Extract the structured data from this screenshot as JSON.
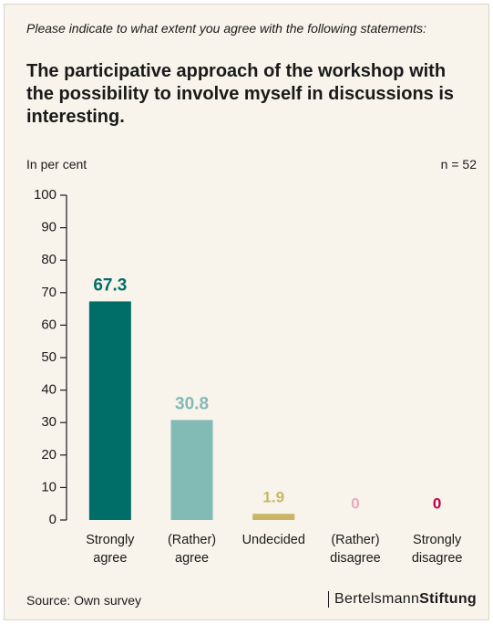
{
  "chart_data": {
    "type": "bar",
    "question": "Please indicate to what extent you agree with the following statements:",
    "title": "The participative approach of the workshop with the possibility to involve myself in discussions is interesting.",
    "y_label": "In per cent",
    "sample": "n = 52",
    "categories": [
      "Strongly agree",
      "(Rather) agree",
      "Undecided",
      "(Rather) disagree",
      "Strongly disagree"
    ],
    "values": [
      67.3,
      30.8,
      1.9,
      0,
      0
    ],
    "colors": [
      "#006e68",
      "#82bab6",
      "#c9b664",
      "#eba8bd",
      "#c4004d"
    ],
    "ylim": [
      0,
      100
    ],
    "yticks": [
      0,
      10,
      20,
      30,
      40,
      50,
      60,
      70,
      80,
      90,
      100
    ],
    "source": "Source: Own survey",
    "brand": {
      "light": "Bertelsmann",
      "bold": "Stiftung"
    }
  }
}
